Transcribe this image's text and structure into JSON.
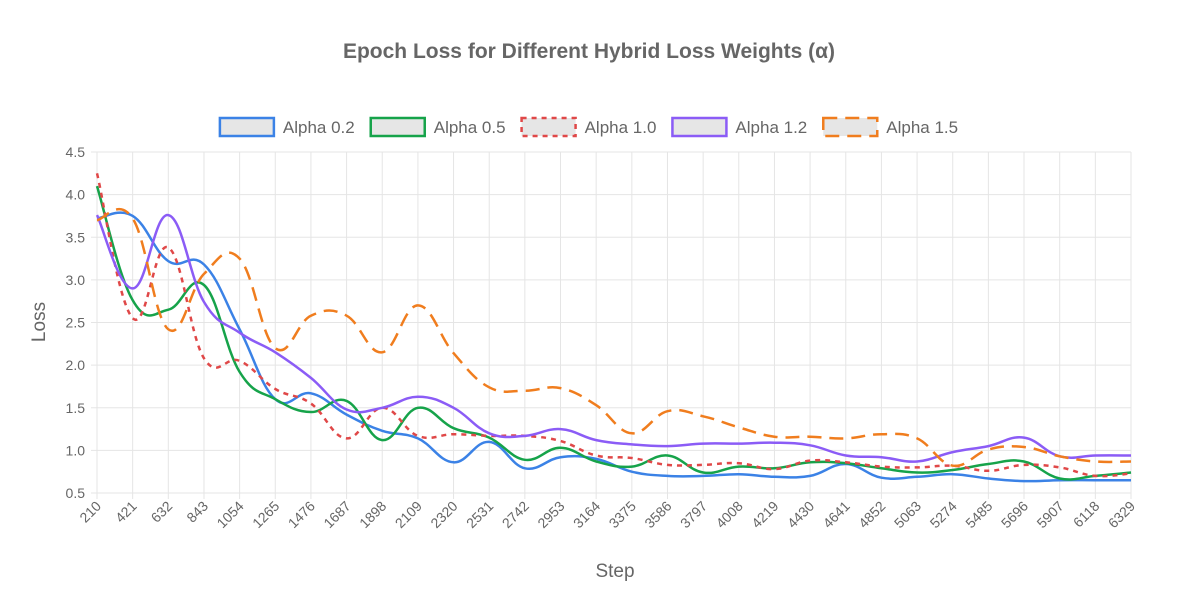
{
  "chart_data": {
    "type": "line",
    "title": "Epoch Loss for Different Hybrid Loss Weights (α)",
    "xlabel": "Step",
    "ylabel": "Loss",
    "ylim": [
      0.5,
      4.5
    ],
    "yticks": [
      "0.5",
      "1.0",
      "1.5",
      "2.0",
      "2.5",
      "3.0",
      "3.5",
      "4.0",
      "4.5"
    ],
    "grid": true,
    "legend_position": "top-center",
    "categories": [
      "210",
      "421",
      "632",
      "843",
      "1054",
      "1265",
      "1476",
      "1687",
      "1898",
      "2109",
      "2320",
      "2531",
      "2742",
      "2953",
      "3164",
      "3375",
      "3586",
      "3797",
      "4008",
      "4219",
      "4430",
      "4641",
      "4852",
      "5063",
      "5274",
      "5485",
      "5696",
      "5907",
      "6118",
      "6329"
    ],
    "series": [
      {
        "name": "Alpha 0.2",
        "color": "#3b82e6",
        "dash": "solid",
        "values": [
          3.72,
          3.75,
          3.22,
          3.18,
          2.42,
          1.6,
          1.67,
          1.42,
          1.23,
          1.14,
          0.86,
          1.1,
          0.79,
          0.92,
          0.9,
          0.75,
          0.7,
          0.7,
          0.72,
          0.69,
          0.7,
          0.84,
          0.68,
          0.69,
          0.72,
          0.67,
          0.64,
          0.65,
          0.65,
          0.65
        ]
      },
      {
        "name": "Alpha 0.5",
        "color": "#16a34a",
        "dash": "solid",
        "values": [
          4.1,
          2.76,
          2.65,
          2.94,
          1.92,
          1.6,
          1.45,
          1.58,
          1.12,
          1.5,
          1.26,
          1.15,
          0.89,
          1.03,
          0.87,
          0.81,
          0.94,
          0.74,
          0.81,
          0.79,
          0.86,
          0.85,
          0.79,
          0.74,
          0.77,
          0.84,
          0.87,
          0.67,
          0.7,
          0.74
        ]
      },
      {
        "name": "Alpha 1.0",
        "color": "#e04848",
        "dash": "dotted",
        "values": [
          4.25,
          2.55,
          3.38,
          2.08,
          2.05,
          1.72,
          1.55,
          1.14,
          1.5,
          1.17,
          1.19,
          1.17,
          1.17,
          1.11,
          0.94,
          0.91,
          0.83,
          0.83,
          0.85,
          0.78,
          0.88,
          0.86,
          0.81,
          0.8,
          0.82,
          0.76,
          0.83,
          0.8,
          0.7,
          0.73
        ]
      },
      {
        "name": "Alpha 1.2",
        "color": "#8b5cf6",
        "dash": "solid",
        "values": [
          3.76,
          2.9,
          3.76,
          2.74,
          2.38,
          2.15,
          1.85,
          1.48,
          1.5,
          1.63,
          1.5,
          1.2,
          1.17,
          1.25,
          1.12,
          1.07,
          1.05,
          1.08,
          1.08,
          1.09,
          1.06,
          0.94,
          0.92,
          0.87,
          0.98,
          1.05,
          1.15,
          0.93,
          0.94,
          0.94
        ]
      },
      {
        "name": "Alpha 1.5",
        "color": "#f07d1e",
        "dash": "dashed",
        "values": [
          3.7,
          3.72,
          2.42,
          3.07,
          3.25,
          2.2,
          2.58,
          2.58,
          2.15,
          2.7,
          2.14,
          1.74,
          1.7,
          1.73,
          1.53,
          1.2,
          1.46,
          1.4,
          1.27,
          1.16,
          1.16,
          1.14,
          1.19,
          1.14,
          0.82,
          1.01,
          1.04,
          0.93,
          0.87,
          0.87
        ]
      }
    ]
  }
}
